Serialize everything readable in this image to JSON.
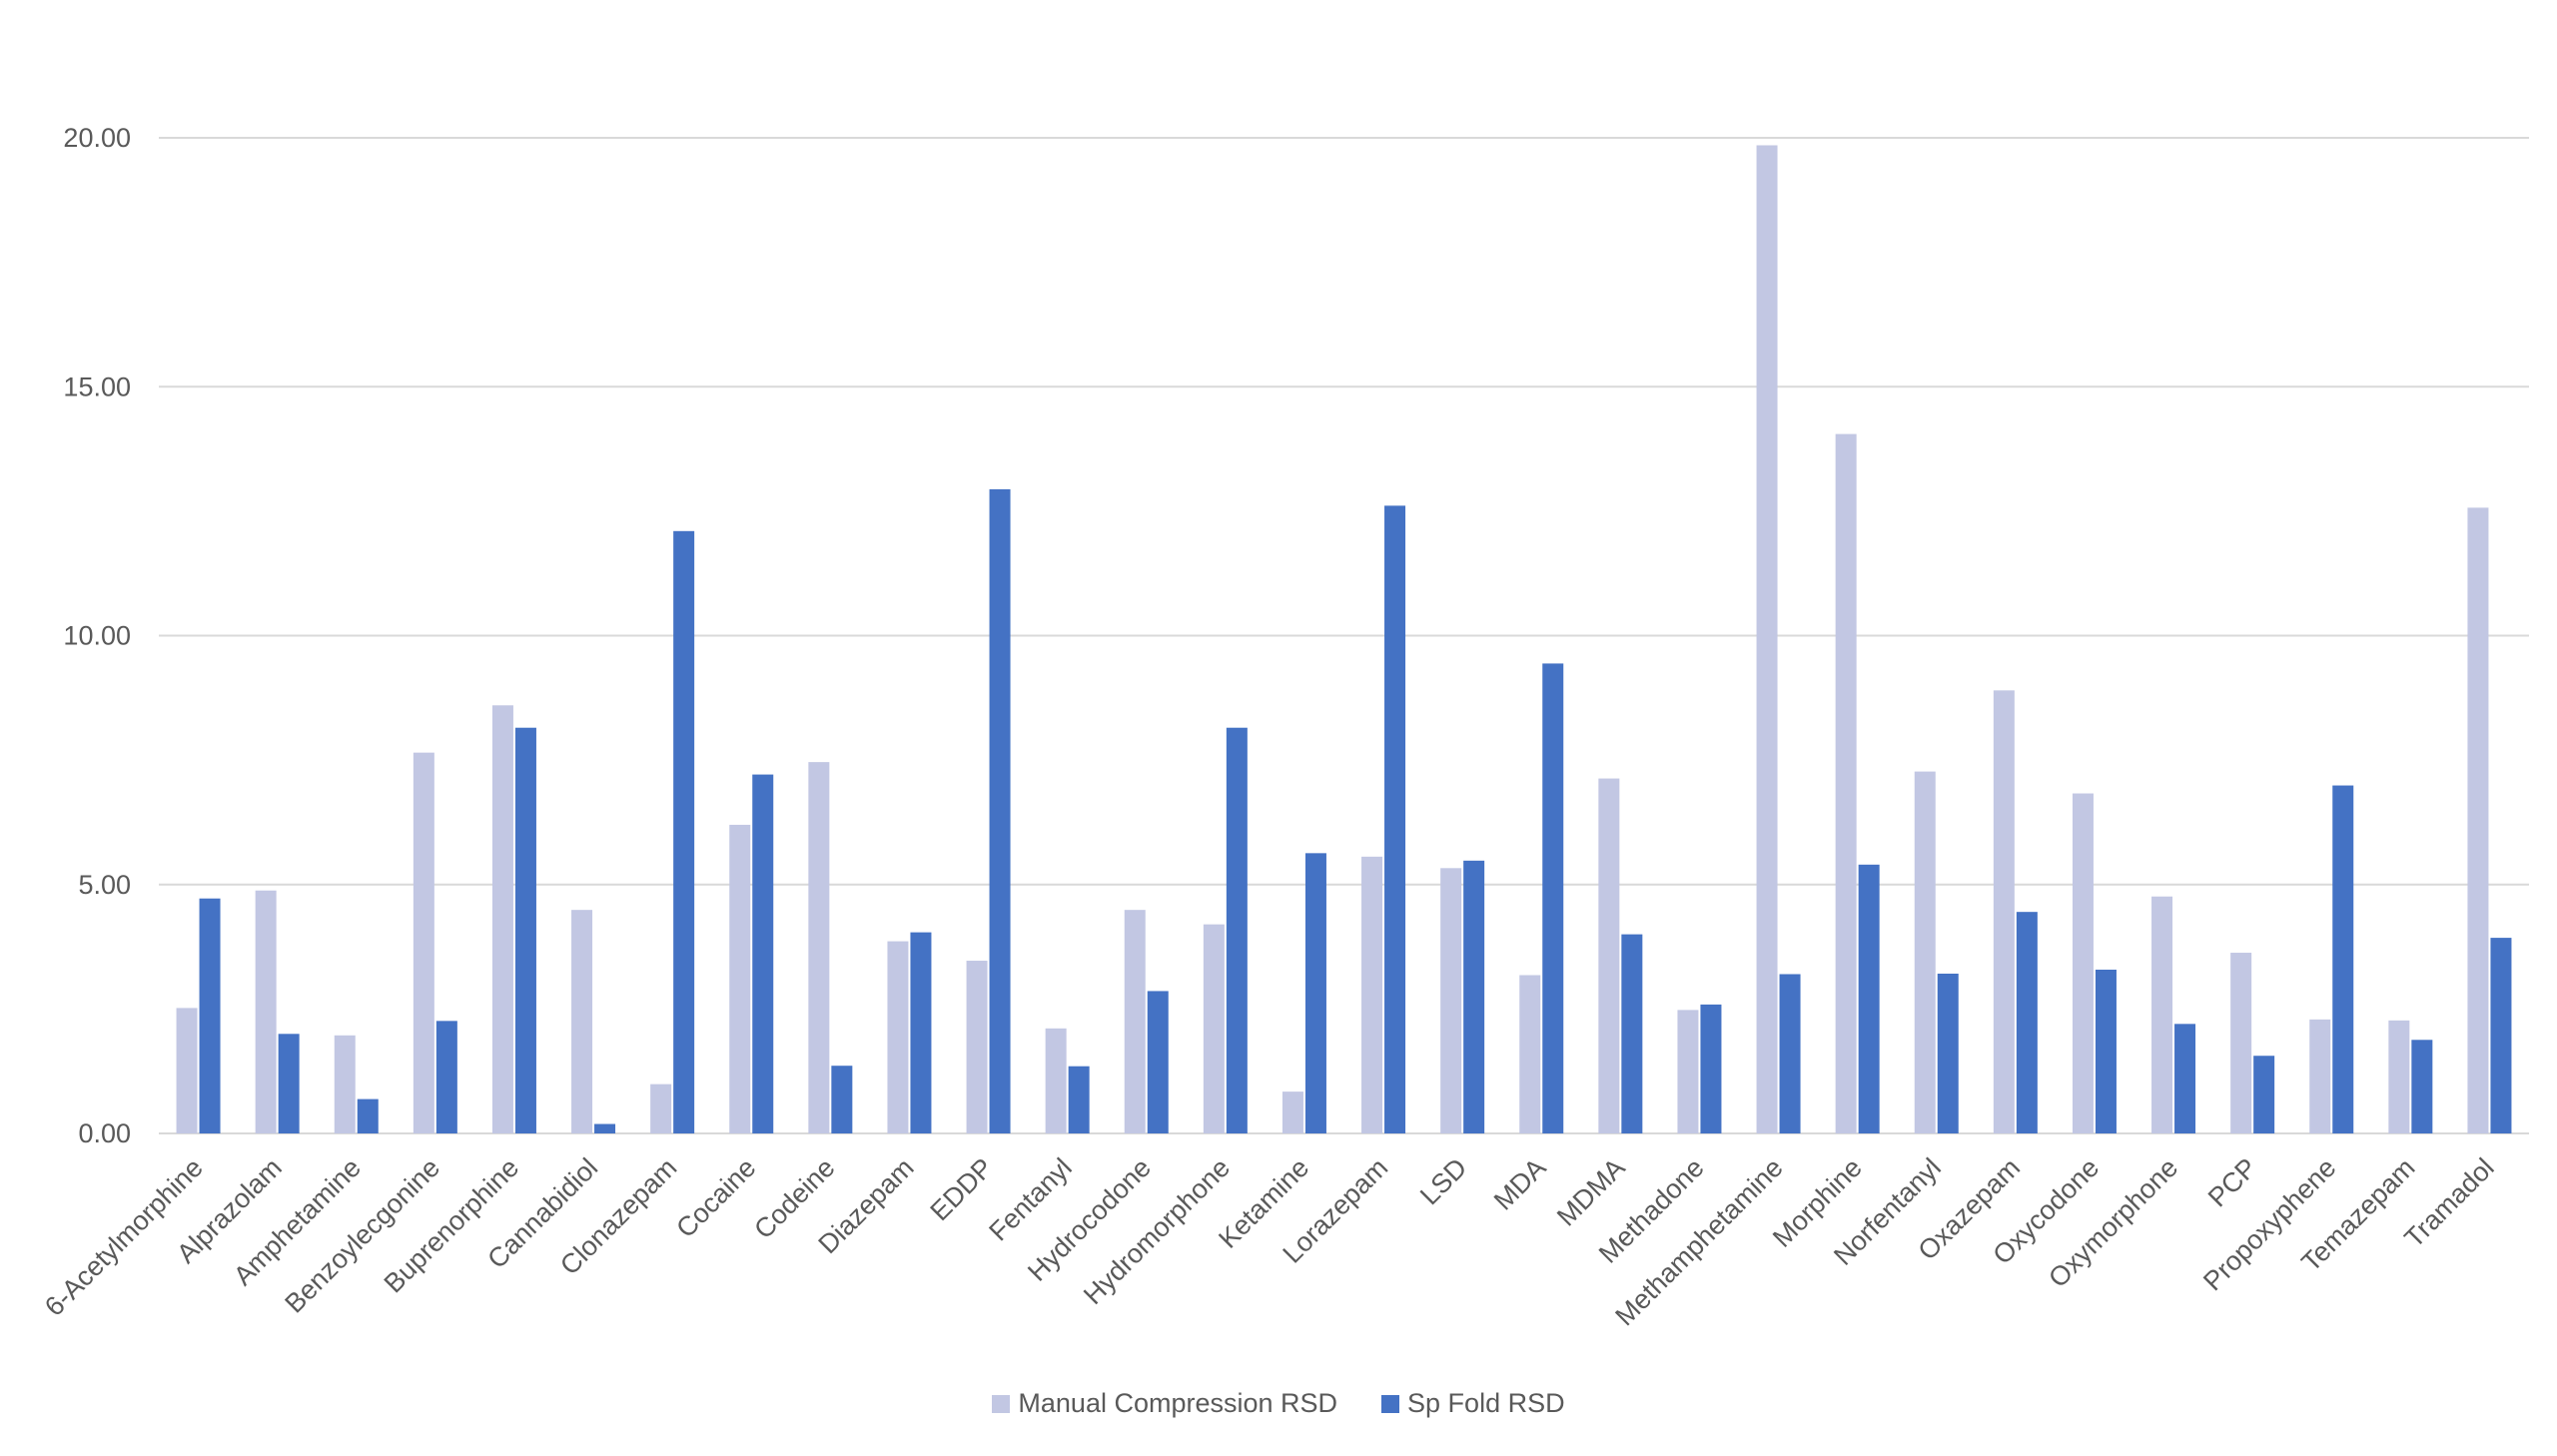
{
  "chart_data": {
    "type": "bar",
    "title": "",
    "xlabel": "",
    "ylabel": "",
    "ylim": [
      0,
      20
    ],
    "yticks": [
      "0.00",
      "5.00",
      "10.00",
      "15.00",
      "20.00"
    ],
    "grid": true,
    "legend_position": "bottom",
    "categories": [
      "6-Acetylmorphine",
      "Alprazolam",
      "Amphetamine",
      "Benzoylecgonine",
      "Buprenorphine",
      "Cannabidiol",
      "Clonazepam",
      "Cocaine",
      "Codeine",
      "Diazepam",
      "EDDP",
      "Fentanyl",
      "Hydrocodone",
      "Hydromorphone",
      "Ketamine",
      "Lorazepam",
      "LSD",
      "MDA",
      "MDMA",
      "Methadone",
      "Methamphetamine",
      "Morphine",
      "Norfentanyl",
      "Oxazepam",
      "Oxycodone",
      "Oxymorphone",
      "PCP",
      "Propoxyphene",
      "Temazepam",
      "Tramadol"
    ],
    "series": [
      {
        "name": "Manual Compression RSD",
        "color": "#c2c7e3",
        "values": [
          2.52,
          4.88,
          1.97,
          7.65,
          8.6,
          4.49,
          0.99,
          6.2,
          7.46,
          3.86,
          3.47,
          2.11,
          4.49,
          4.2,
          0.84,
          5.56,
          5.33,
          3.18,
          7.13,
          2.48,
          19.85,
          14.05,
          7.27,
          8.9,
          6.83,
          4.76,
          3.63,
          2.29,
          2.27,
          12.57
        ]
      },
      {
        "name": "Sp Fold RSD",
        "color": "#4472c4",
        "values": [
          4.72,
          2.0,
          0.69,
          2.26,
          8.15,
          0.19,
          12.1,
          7.21,
          1.36,
          4.04,
          12.94,
          1.35,
          2.86,
          8.15,
          5.63,
          12.61,
          5.48,
          9.44,
          4.0,
          2.59,
          3.2,
          5.4,
          3.21,
          4.45,
          3.29,
          2.2,
          1.56,
          6.99,
          1.88,
          3.93
        ]
      }
    ]
  }
}
